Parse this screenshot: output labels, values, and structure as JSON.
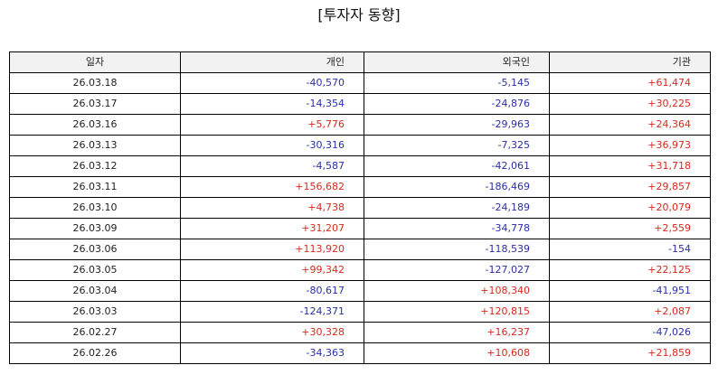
{
  "title": "[투자자 동향]",
  "columns": [
    "일자",
    "개인",
    "외국인",
    "기관"
  ],
  "colors": {
    "positive": "#d62a1e",
    "negative": "#2a2fa8"
  },
  "rows": [
    {
      "date": "26.03.18",
      "individual": "-40,570",
      "foreign": "-5,145",
      "institution": "+61,474"
    },
    {
      "date": "26.03.17",
      "individual": "-14,354",
      "foreign": "-24,876",
      "institution": "+30,225"
    },
    {
      "date": "26.03.16",
      "individual": "+5,776",
      "foreign": "-29,963",
      "institution": "+24,364"
    },
    {
      "date": "26.03.13",
      "individual": "-30,316",
      "foreign": "-7,325",
      "institution": "+36,973"
    },
    {
      "date": "26.03.12",
      "individual": "-4,587",
      "foreign": "-42,061",
      "institution": "+31,718"
    },
    {
      "date": "26.03.11",
      "individual": "+156,682",
      "foreign": "-186,469",
      "institution": "+29,857"
    },
    {
      "date": "26.03.10",
      "individual": "+4,738",
      "foreign": "-24,189",
      "institution": "+20,079"
    },
    {
      "date": "26.03.09",
      "individual": "+31,207",
      "foreign": "-34,778",
      "institution": "+2,559"
    },
    {
      "date": "26.03.06",
      "individual": "+113,920",
      "foreign": "-118,539",
      "institution": "-154"
    },
    {
      "date": "26.03.05",
      "individual": "+99,342",
      "foreign": "-127,027",
      "institution": "+22,125"
    },
    {
      "date": "26.03.04",
      "individual": "-80,617",
      "foreign": "+108,340",
      "institution": "-41,951"
    },
    {
      "date": "26.03.03",
      "individual": "-124,371",
      "foreign": "+120,815",
      "institution": "+2,087"
    },
    {
      "date": "26.02.27",
      "individual": "+30,328",
      "foreign": "+16,237",
      "institution": "-47,026"
    },
    {
      "date": "26.02.26",
      "individual": "-34,363",
      "foreign": "+10,608",
      "institution": "+21,859"
    }
  ]
}
